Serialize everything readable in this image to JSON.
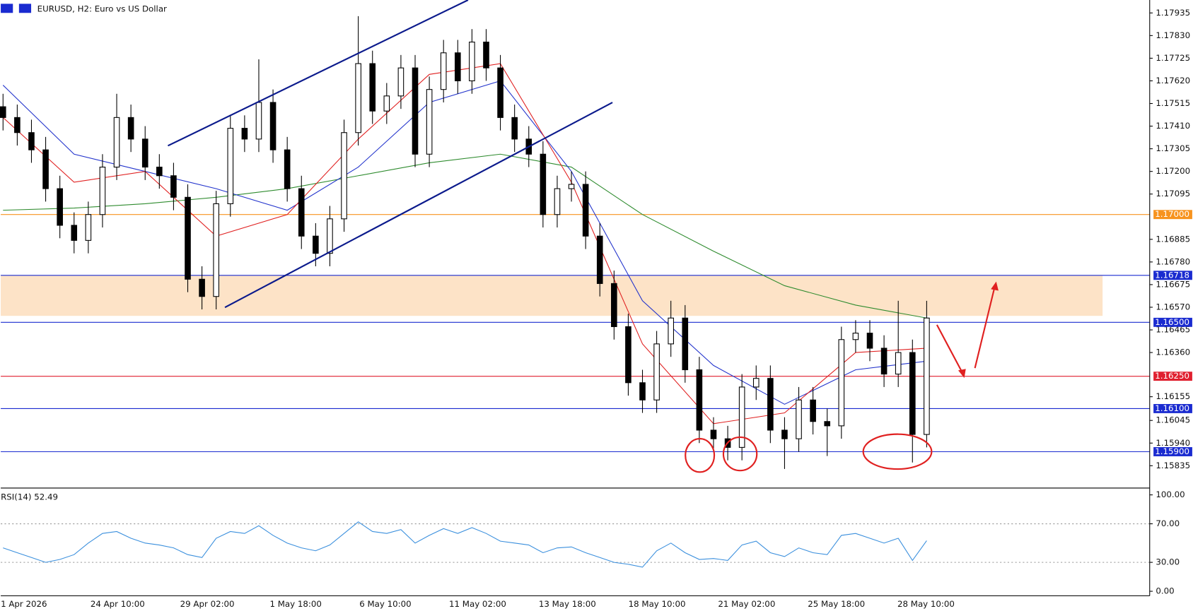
{
  "chart_data": [
    {
      "type": "candlestick",
      "title": "EURUSD, H2:  Euro vs US Dollar",
      "categories": [
        "1 Apr 2026",
        "24 Apr 10:00",
        "29 Apr 02:00",
        "1 May 18:00",
        "6 May 10:00",
        "11 May 02:00",
        "13 May 18:00",
        "18 May 10:00",
        "21 May 02:00",
        "25 May 18:00",
        "28 May 10:00"
      ],
      "ylim": [
        1.15735,
        1.17995
      ],
      "yticks": [
        {
          "value": 1.17935,
          "label": "1.17935"
        },
        {
          "value": 1.1783,
          "label": "1.17830"
        },
        {
          "value": 1.17725,
          "label": "1.17725"
        },
        {
          "value": 1.1762,
          "label": "1.17620"
        },
        {
          "value": 1.17515,
          "label": "1.17515"
        },
        {
          "value": 1.1741,
          "label": "1.17410"
        },
        {
          "value": 1.17305,
          "label": "1.17305"
        },
        {
          "value": 1.172,
          "label": "1.17200"
        },
        {
          "value": 1.17095,
          "label": "1.17095"
        },
        {
          "value": 1.16885,
          "label": "1.16885"
        },
        {
          "value": 1.1678,
          "label": "1.16780"
        },
        {
          "value": 1.16675,
          "label": "1.16675"
        },
        {
          "value": 1.1657,
          "label": "1.16570"
        },
        {
          "value": 1.16465,
          "label": "1.16465"
        },
        {
          "value": 1.1636,
          "label": "1.16360"
        },
        {
          "value": 1.16155,
          "label": "1.16155"
        },
        {
          "value": 1.16045,
          "label": "1.16045"
        },
        {
          "value": 1.1594,
          "label": "1.15940"
        },
        {
          "value": 1.15835,
          "label": "1.15835"
        }
      ],
      "open": [
        1.175,
        1.1745,
        1.1738,
        1.173,
        1.1712,
        1.1695,
        1.1688,
        1.17,
        1.1722,
        1.1745,
        1.1735,
        1.1722,
        1.1718,
        1.1708,
        1.167,
        1.1662,
        1.1705,
        1.174,
        1.1735,
        1.1752,
        1.173,
        1.1712,
        1.169,
        1.1682,
        1.1698,
        1.1738,
        1.177,
        1.1748,
        1.1755,
        1.1768,
        1.1728,
        1.1758,
        1.1775,
        1.1762,
        1.178,
        1.1768,
        1.1745,
        1.1735,
        1.1728,
        1.17,
        1.1712,
        1.1714,
        1.169,
        1.1668,
        1.1648,
        1.1622,
        1.1614,
        1.164,
        1.1652,
        1.1628,
        1.16,
        1.1596,
        1.1592,
        1.162,
        1.1624,
        1.16,
        1.1596,
        1.1614,
        1.1604,
        1.1602,
        1.1642,
        1.1645,
        1.1638,
        1.1626,
        1.1636,
        1.1598
      ],
      "high": [
        1.1756,
        1.1751,
        1.1744,
        1.1736,
        1.1718,
        1.1701,
        1.1706,
        1.1728,
        1.1756,
        1.1751,
        1.1741,
        1.1728,
        1.1724,
        1.1714,
        1.1676,
        1.1711,
        1.1746,
        1.1746,
        1.1772,
        1.1758,
        1.1736,
        1.1718,
        1.1696,
        1.1704,
        1.1744,
        1.1792,
        1.1776,
        1.1761,
        1.1774,
        1.1774,
        1.1764,
        1.1781,
        1.1781,
        1.1786,
        1.1786,
        1.1774,
        1.1751,
        1.1741,
        1.1734,
        1.1718,
        1.172,
        1.172,
        1.1696,
        1.1674,
        1.1654,
        1.1628,
        1.1646,
        1.166,
        1.1658,
        1.1634,
        1.1606,
        1.1602,
        1.1626,
        1.163,
        1.163,
        1.1606,
        1.162,
        1.162,
        1.161,
        1.1648,
        1.1651,
        1.1651,
        1.1644,
        1.166,
        1.1642,
        1.166
      ],
      "low": [
        1.1739,
        1.1732,
        1.1724,
        1.1706,
        1.1689,
        1.1682,
        1.1682,
        1.1694,
        1.1716,
        1.1729,
        1.1716,
        1.1712,
        1.1702,
        1.1664,
        1.1656,
        1.1656,
        1.1699,
        1.1729,
        1.1729,
        1.1724,
        1.1706,
        1.1684,
        1.1676,
        1.1676,
        1.1692,
        1.1732,
        1.1742,
        1.1742,
        1.1749,
        1.1722,
        1.1722,
        1.1752,
        1.1756,
        1.1756,
        1.1762,
        1.1739,
        1.1729,
        1.1722,
        1.1694,
        1.1694,
        1.1706,
        1.1684,
        1.1662,
        1.1642,
        1.1616,
        1.1608,
        1.1608,
        1.1634,
        1.1622,
        1.1594,
        1.159,
        1.1586,
        1.1586,
        1.1614,
        1.1594,
        1.1582,
        1.159,
        1.1598,
        1.1588,
        1.1596,
        1.1636,
        1.1632,
        1.162,
        1.162,
        1.1585,
        1.1592
      ],
      "close": [
        1.1745,
        1.1738,
        1.173,
        1.1712,
        1.1695,
        1.1688,
        1.17,
        1.1722,
        1.1745,
        1.1735,
        1.1722,
        1.1718,
        1.1708,
        1.167,
        1.1662,
        1.1705,
        1.174,
        1.1735,
        1.1752,
        1.173,
        1.1712,
        1.169,
        1.1682,
        1.1698,
        1.1738,
        1.177,
        1.1748,
        1.1755,
        1.1768,
        1.1728,
        1.1758,
        1.1775,
        1.1762,
        1.178,
        1.1768,
        1.1745,
        1.1735,
        1.1728,
        1.17,
        1.1712,
        1.1714,
        1.169,
        1.1668,
        1.1648,
        1.1622,
        1.1614,
        1.164,
        1.1652,
        1.1628,
        1.16,
        1.1596,
        1.1592,
        1.162,
        1.1624,
        1.16,
        1.1596,
        1.1614,
        1.1604,
        1.1602,
        1.1642,
        1.1645,
        1.1638,
        1.1626,
        1.1636,
        1.1598,
        1.1652
      ],
      "ma_x": [
        0,
        5,
        10,
        15,
        20,
        25,
        30,
        35,
        40,
        45,
        50,
        55,
        60,
        65
      ],
      "moving_averages": [
        {
          "color": "#2e8b2e",
          "values": [
            1.1702,
            1.1703,
            1.1705,
            1.1708,
            1.1712,
            1.1718,
            1.1724,
            1.1728,
            1.1722,
            1.17,
            1.1683,
            1.1667,
            1.1658,
            1.1652
          ]
        },
        {
          "color": "#2233cc",
          "values": [
            1.176,
            1.1728,
            1.172,
            1.1712,
            1.1702,
            1.1722,
            1.1752,
            1.1762,
            1.172,
            1.166,
            1.163,
            1.1612,
            1.1628,
            1.1632
          ]
        },
        {
          "color": "#e02020",
          "values": [
            1.1745,
            1.1715,
            1.172,
            1.169,
            1.17,
            1.1735,
            1.1765,
            1.177,
            1.1715,
            1.164,
            1.1603,
            1.1608,
            1.1636,
            1.1638
          ]
        }
      ],
      "levels": [
        {
          "value": 1.17,
          "label": "1.17000",
          "color": "#f7931e"
        },
        {
          "value": 1.16718,
          "label": "1.16718",
          "color": "#1a2bd0"
        },
        {
          "value": 1.165,
          "label": "1.16500",
          "color": "#1a2bd0"
        },
        {
          "value": 1.1625,
          "label": "1.16250",
          "color": "#e0202f"
        },
        {
          "value": 1.161,
          "label": "1.16100",
          "color": "#1a2bd0"
        },
        {
          "value": 1.159,
          "label": "1.15900",
          "color": "#1a2bd0"
        }
      ],
      "zone": [
        1.1653,
        1.16718
      ]
    },
    {
      "type": "line",
      "title": "RSI(14) 52.49",
      "color": "#3a8fdd",
      "ylim": [
        0,
        100
      ],
      "yticks": [
        {
          "value": 100,
          "label": "100.00"
        },
        {
          "value": 70,
          "label": "70.00"
        },
        {
          "value": 30,
          "label": "30.00"
        },
        {
          "value": 0,
          "label": "0.00"
        }
      ],
      "levels": [
        70,
        30
      ],
      "values": [
        45,
        40,
        35,
        30,
        33,
        38,
        50,
        60,
        62,
        55,
        50,
        48,
        45,
        38,
        35,
        55,
        62,
        60,
        68,
        58,
        50,
        45,
        42,
        48,
        60,
        72,
        62,
        60,
        64,
        50,
        58,
        65,
        60,
        66,
        60,
        52,
        50,
        48,
        40,
        45,
        46,
        40,
        35,
        30,
        28,
        25,
        42,
        50,
        40,
        33,
        34,
        32,
        48,
        52,
        40,
        36,
        45,
        40,
        38,
        58,
        60,
        55,
        50,
        55,
        32,
        52.49
      ]
    }
  ]
}
